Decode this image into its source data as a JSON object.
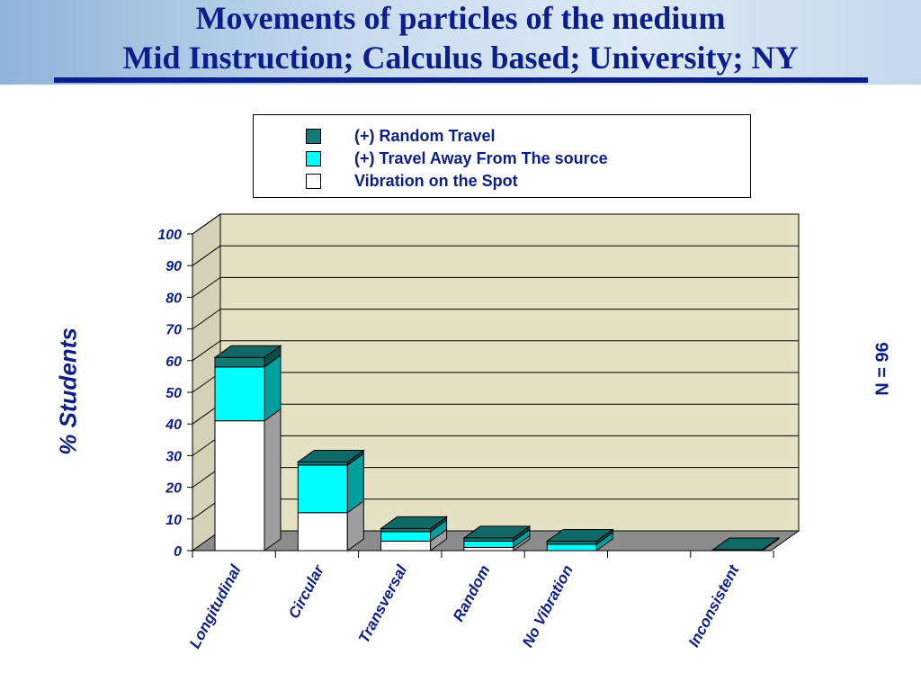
{
  "header": {
    "title_line1": "Movements of particles of the medium",
    "title_line2": "Mid Instruction; Calculus based; University; NY"
  },
  "note": "N = 96",
  "colors": {
    "random_travel": "#147a78",
    "travel_away": "#00ffff",
    "vibration": "#ffffff",
    "wall": "#e5e1c5",
    "floor": "#8c8c8c",
    "text": "#0b1f8c"
  },
  "chart_data": {
    "type": "bar",
    "stacked": true,
    "three_d": true,
    "ylabel": "% Students",
    "ylim": [
      0,
      100
    ],
    "yticks": [
      0,
      10,
      20,
      30,
      40,
      50,
      60,
      70,
      80,
      90,
      100
    ],
    "grid": true,
    "legend_position": "top",
    "categories": [
      "Longitudinal",
      "Circular",
      "Transversal",
      "Random",
      "No Vibration",
      "",
      "Inconsistent"
    ],
    "series": [
      {
        "name": "Vibration on the Spot",
        "values": [
          41,
          12,
          3,
          1,
          0,
          0,
          0
        ]
      },
      {
        "name": "(+) Travel Away From The source",
        "values": [
          17,
          15,
          3,
          2,
          2,
          0,
          0
        ]
      },
      {
        "name": "(+) Random Travel",
        "values": [
          3,
          1,
          1,
          1,
          1,
          0,
          0.3
        ]
      }
    ]
  }
}
